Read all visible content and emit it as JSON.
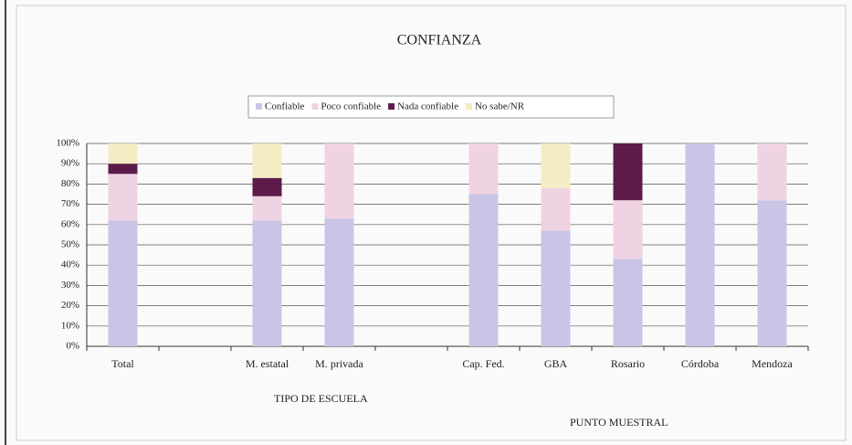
{
  "chart_data": {
    "type": "stacked_bar",
    "title": "CONFIANZA",
    "categories": [
      "Total",
      null,
      "M. estatal",
      "M. privada",
      null,
      "Cap. Fed.",
      "GBA",
      "Rosario",
      "Córdoba",
      "Mendoza"
    ],
    "series": [
      {
        "name": "Confiable",
        "color": "#cac5e6",
        "values": [
          62,
          null,
          62,
          63,
          null,
          75,
          57,
          43,
          100,
          72
        ]
      },
      {
        "name": "Poco confiable",
        "color": "#efd3e3",
        "values": [
          23,
          null,
          12,
          37,
          null,
          25,
          21,
          29,
          0,
          28
        ]
      },
      {
        "name": "Nada confiable",
        "color": "#5c1c4a",
        "values": [
          5,
          null,
          9,
          0,
          null,
          0,
          0,
          28,
          0,
          0
        ]
      },
      {
        "name": "No sabe/NR",
        "color": "#f4edc4",
        "values": [
          10,
          null,
          17,
          0,
          null,
          0,
          22,
          0,
          0,
          0
        ]
      }
    ],
    "ylim": [
      0,
      100
    ],
    "yticks": [
      {
        "value": 0,
        "label": "0%"
      },
      {
        "value": 10,
        "label": "10%"
      },
      {
        "value": 20,
        "label": "20%"
      },
      {
        "value": 30,
        "label": "30%"
      },
      {
        "value": 40,
        "label": "40%"
      },
      {
        "value": 50,
        "label": "50%"
      },
      {
        "value": 60,
        "label": "60%"
      },
      {
        "value": 70,
        "label": "70%"
      },
      {
        "value": 80,
        "label": "80%"
      },
      {
        "value": 90,
        "label": "90%"
      },
      {
        "value": 100,
        "label": "100%"
      }
    ],
    "annotations": [
      "TIPO DE ESCUELA",
      "PUNTO MUESTRAL"
    ],
    "grid": true,
    "legend": "top"
  }
}
